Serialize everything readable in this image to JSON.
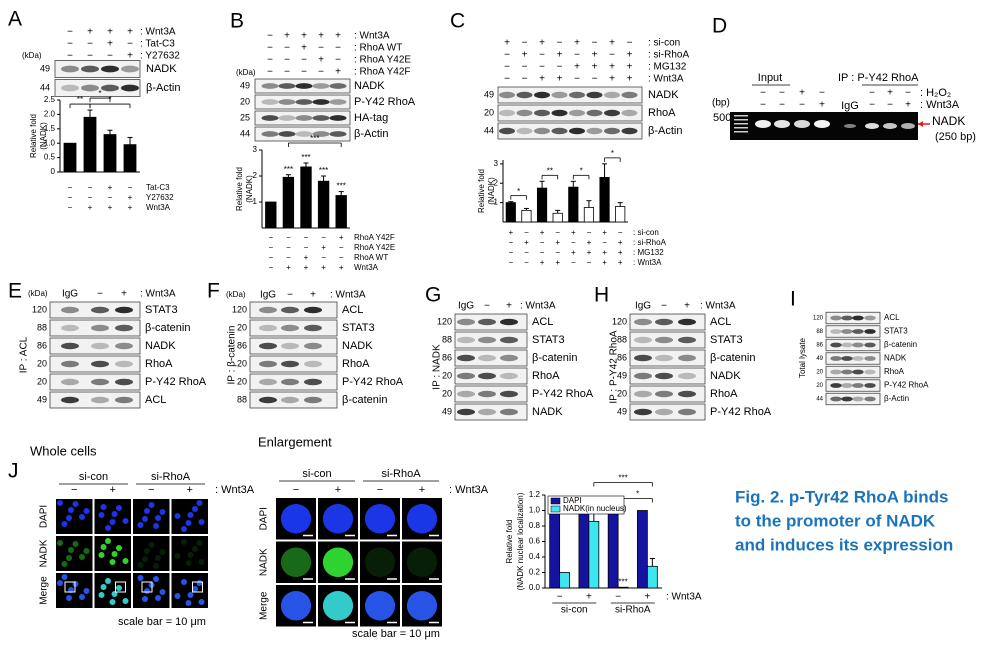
{
  "panels": {
    "A": {
      "label": "A",
      "kda_header": "(kDa)",
      "treatments": [
        {
          "signs": [
            "−",
            "+",
            "+",
            "+"
          ],
          "name": ": Wnt3A"
        },
        {
          "signs": [
            "−",
            "−",
            "+",
            "−"
          ],
          "name": ": Tat-C3"
        },
        {
          "signs": [
            "−",
            "−",
            "−",
            "+"
          ],
          "name": ": Y27632"
        }
      ],
      "blots": [
        {
          "kda": "49",
          "name": "NADK"
        },
        {
          "kda": "44",
          "name": "β-Actin"
        }
      ],
      "chart": {
        "type": "bar",
        "y_label": [
          "Relative fold",
          "(NADK)"
        ],
        "ylim": [
          0,
          2.5
        ],
        "yticks": [
          0,
          0.5,
          {
            "value": 1,
            "label": "1.0"
          },
          1.5,
          {
            "value": 2,
            "label": "2.0"
          },
          2.5
        ],
        "values": [
          1,
          1.9,
          1.3,
          0.95
        ],
        "errors": [
          null,
          0.25,
          0.15,
          0.25
        ],
        "color": "#000000",
        "annotations": [
          "**",
          "*",
          "*"
        ],
        "treatments": [
          {
            "signs": [
              "−",
              "−",
              "+",
              "−"
            ],
            "name": "Tat-C3"
          },
          {
            "signs": [
              "−",
              "−",
              "−",
              "+"
            ],
            "name": "Y27632"
          },
          {
            "signs": [
              "−",
              "+",
              "+",
              "+"
            ],
            "name": "Wnt3A"
          }
        ]
      }
    },
    "B": {
      "label": "B",
      "kda_header": "(kDa)",
      "treatments": [
        {
          "signs": [
            "−",
            "+",
            "+",
            "+",
            "+"
          ],
          "name": ": Wnt3A"
        },
        {
          "signs": [
            "−",
            "−",
            "+",
            "−",
            "−"
          ],
          "name": ": RhoA WT"
        },
        {
          "signs": [
            "−",
            "−",
            "−",
            "+",
            "−"
          ],
          "name": ": RhoA Y42E"
        },
        {
          "signs": [
            "−",
            "−",
            "−",
            "−",
            "+"
          ],
          "name": ": RhoA Y42F"
        }
      ],
      "blots": [
        {
          "kda": "49",
          "name": "NADK"
        },
        {
          "kda": "20",
          "name": "P-Y42 RhoA"
        },
        {
          "kda": "25",
          "name": "HA-tag"
        },
        {
          "kda": "44",
          "name": "β-Actin"
        }
      ],
      "chart": {
        "type": "bar",
        "y_label": [
          "Relative fold",
          "(NADK)"
        ],
        "ylim": [
          0,
          3
        ],
        "yticks": [
          1,
          2,
          3
        ],
        "values": [
          1,
          1.95,
          2.35,
          1.8,
          1.25
        ],
        "errors": [
          null,
          0.1,
          0.15,
          0.2,
          0.15
        ],
        "color": "#000000",
        "annotations": [
          "***",
          "***",
          "***",
          "***",
          "***"
        ],
        "treatments": [
          {
            "signs": [
              "−",
              "−",
              "−",
              "−",
              "+"
            ],
            "name": "RhoA Y42F"
          },
          {
            "signs": [
              "−",
              "−",
              "−",
              "+",
              "−"
            ],
            "name": "RhoA Y42E"
          },
          {
            "signs": [
              "−",
              "−",
              "+",
              "−",
              "−"
            ],
            "name": "RhoA WT"
          },
          {
            "signs": [
              "−",
              "+",
              "+",
              "+",
              "+"
            ],
            "name": "Wnt3A"
          }
        ]
      }
    },
    "C": {
      "label": "C",
      "treatments": [
        {
          "signs": [
            "+",
            "−",
            "+",
            "−",
            "+",
            "−",
            "+",
            "−"
          ],
          "name": ": si-con"
        },
        {
          "signs": [
            "−",
            "+",
            "−",
            "+",
            "−",
            "+",
            "−",
            "+"
          ],
          "name": ": si-RhoA"
        },
        {
          "signs": [
            "−",
            "−",
            "−",
            "−",
            "+",
            "+",
            "+",
            "+"
          ],
          "name": ": MG132"
        },
        {
          "signs": [
            "−",
            "−",
            "+",
            "+",
            "−",
            "−",
            "+",
            "+"
          ],
          "name": ": Wnt3A"
        }
      ],
      "blots": [
        {
          "kda": "49",
          "name": "NADK"
        },
        {
          "kda": "20",
          "name": "RhoA"
        },
        {
          "kda": "44",
          "name": "β-Actin"
        }
      ],
      "chart": {
        "type": "bar",
        "y_label": [
          "Relative fold",
          "(NADK)"
        ],
        "ylim": [
          0,
          3.2
        ],
        "yticks": [
          1,
          2,
          3
        ],
        "values": [
          1,
          0.6,
          1.75,
          0.45,
          1.8,
          0.75,
          2.3,
          0.8
        ],
        "errors": [
          0.05,
          0.1,
          0.35,
          0.15,
          0.3,
          0.35,
          0.7,
          0.2
        ],
        "bar_colors": [
          "#000000",
          "#ffffff",
          "#000000",
          "#ffffff",
          "#000000",
          "#ffffff",
          "#000000",
          "#ffffff"
        ],
        "annotations": [
          "*",
          "**",
          "*",
          "*"
        ],
        "treatments": [
          {
            "signs": [
              "+",
              "−",
              "+",
              "−",
              "+",
              "−",
              "+",
              "−"
            ],
            "name": ": si-con"
          },
          {
            "signs": [
              "−",
              "+",
              "−",
              "+",
              "−",
              "+",
              "−",
              "+"
            ],
            "name": ": si-RhoA"
          },
          {
            "signs": [
              "−",
              "−",
              "−",
              "−",
              "+",
              "+",
              "+",
              "+"
            ],
            "name": ": MG132"
          },
          {
            "signs": [
              "−",
              "−",
              "+",
              "+",
              "−",
              "−",
              "+",
              "+"
            ],
            "name": ": Wnt3A"
          }
        ]
      }
    },
    "D": {
      "label": "D",
      "input": "Input",
      "ip": "IP : P-Y42 RhoA",
      "bp_header": "(bp)",
      "marker": "500",
      "igg": "IgG",
      "names": [
        ": H₂O₂",
        ": Wnt3A"
      ],
      "signs_input": [
        [
          "−",
          "−",
          "+",
          "−"
        ],
        [
          "−",
          "−",
          "−",
          "+"
        ]
      ],
      "signs_ip": [
        [
          "−",
          "+",
          "−"
        ],
        [
          "−",
          "−",
          "+"
        ]
      ],
      "band_label": "NADK",
      "band_size": "(250 bp)"
    },
    "E": {
      "label": "E",
      "ip": "IP : ACL",
      "kda_header": "(kDa)",
      "header": [
        "IgG",
        "−",
        "+"
      ],
      "treatment": ": Wnt3A",
      "blots": [
        {
          "kda": "120",
          "name": "STAT3"
        },
        {
          "kda": "88",
          "name": "β-catenin"
        },
        {
          "kda": "86",
          "name": "NADK"
        },
        {
          "kda": "20",
          "name": "RhoA"
        },
        {
          "kda": "20",
          "name": "P-Y42 RhoA"
        },
        {
          "kda": "49",
          "name": "ACL"
        }
      ]
    },
    "F": {
      "label": "F",
      "ip": "IP : β-catenin",
      "kda_header": "(kDa)",
      "header": [
        "IgG",
        "−",
        "+"
      ],
      "treatment": ": Wnt3A",
      "blots": [
        {
          "kda": "120",
          "name": "ACL"
        },
        {
          "kda": "20",
          "name": "STAT3"
        },
        {
          "kda": "86",
          "name": "NADK"
        },
        {
          "kda": "20",
          "name": "RhoA"
        },
        {
          "kda": "20",
          "name": "P-Y42 RhoA"
        },
        {
          "kda": "88",
          "name": "β-catenin"
        }
      ]
    },
    "G": {
      "label": "G",
      "ip": "IP : NADK",
      "header": [
        "IgG",
        "−",
        "+"
      ],
      "treatment": ": Wnt3A",
      "blots": [
        {
          "kda": "120",
          "name": "ACL"
        },
        {
          "kda": "88",
          "name": "STAT3"
        },
        {
          "kda": "86",
          "name": "β-catenin"
        },
        {
          "kda": "20",
          "name": "RhoA"
        },
        {
          "kda": "20",
          "name": "P-Y42 RhoA"
        },
        {
          "kda": "49",
          "name": "NADK"
        }
      ]
    },
    "H": {
      "label": "H",
      "ip": "IP : P-Y42 RhoA",
      "header": [
        "IgG",
        "−",
        "+"
      ],
      "treatment": ": Wnt3A",
      "blots": [
        {
          "kda": "120",
          "name": "ACL"
        },
        {
          "kda": "88",
          "name": "STAT3"
        },
        {
          "kda": "86",
          "name": "β-catenin"
        },
        {
          "kda": "49",
          "name": "NADK"
        },
        {
          "kda": "20",
          "name": "RhoA"
        },
        {
          "kda": "49",
          "name": "P-Y42 RhoA"
        }
      ]
    },
    "I": {
      "label": "I",
      "lysate": "Total lysate",
      "blots": [
        {
          "kda": "120",
          "name": "ACL"
        },
        {
          "kda": "88",
          "name": "STAT3"
        },
        {
          "kda": "86",
          "name": "β-catenin"
        },
        {
          "kda": "49",
          "name": "NADK"
        },
        {
          "kda": "20",
          "name": "RhoA"
        },
        {
          "kda": "20",
          "name": "P-Y42 RhoA"
        },
        {
          "kda": "44",
          "name": "β-Actin"
        }
      ]
    },
    "J": {
      "label": "J",
      "whole": {
        "title": "Whole cells",
        "groups": [
          "si-con",
          "si-RhoA"
        ],
        "signs": [
          "−",
          "+",
          "−",
          "+"
        ],
        "treatment": ": Wnt3A",
        "rows": [
          "DAPI",
          "NADK",
          "Merge"
        ],
        "scale": "scale bar = 10 μm"
      },
      "enlargement": {
        "title": "Enlargement",
        "groups": [
          "si-con",
          "si-RhoA"
        ],
        "signs": [
          "−",
          "+",
          "−",
          "+"
        ],
        "treatment": ": Wnt3A",
        "rows": [
          "DAPI",
          "NADK",
          "Merge"
        ],
        "scale": "scale bar = 10 μm"
      },
      "chart": {
        "type": "grouped-bar",
        "y_label": [
          "Relative fold",
          "(NADK nuclear localization)"
        ],
        "ylim": [
          0,
          1.2
        ],
        "yticks": [
          {
            "value": 0,
            "label": "0.0"
          },
          0.2,
          0.4,
          0.6,
          0.8,
          {
            "value": 1,
            "label": "1.0"
          },
          1.2
        ],
        "categories": [
          "−",
          "+",
          "−",
          "+"
        ],
        "groups": [
          "si-con",
          "si-RhoA"
        ],
        "treatment": ": Wnt3A",
        "series": [
          {
            "name": "DAPI",
            "color": "#1414a0",
            "values": [
              1,
              1,
              1,
              1
            ],
            "errors": [
              null,
              null,
              null,
              null
            ]
          },
          {
            "name": "NADK(in nucleus)",
            "color": "#3ee6f2",
            "values": [
              0.2,
              0.86,
              0.01,
              0.28
            ],
            "errors": [
              null,
              0.12,
              null,
              0.1
            ]
          }
        ],
        "annotations": [
          "***",
          "***",
          "***",
          "*"
        ]
      }
    }
  },
  "caption": [
    "Fig. 2. p-Tyr42 RhoA binds",
    "to the promoter of NADK",
    "and induces its expression"
  ]
}
